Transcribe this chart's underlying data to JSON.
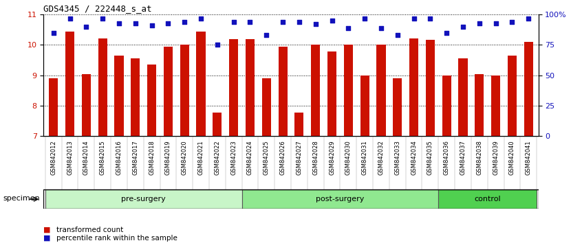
{
  "title": "GDS4345 / 222448_s_at",
  "samples": [
    "GSM842012",
    "GSM842013",
    "GSM842014",
    "GSM842015",
    "GSM842016",
    "GSM842017",
    "GSM842018",
    "GSM842019",
    "GSM842020",
    "GSM842021",
    "GSM842022",
    "GSM842023",
    "GSM842024",
    "GSM842025",
    "GSM842026",
    "GSM842027",
    "GSM842028",
    "GSM842029",
    "GSM842030",
    "GSM842031",
    "GSM842032",
    "GSM842033",
    "GSM842034",
    "GSM842035",
    "GSM842036",
    "GSM842037",
    "GSM842038",
    "GSM842039",
    "GSM842040",
    "GSM842041"
  ],
  "bar_values": [
    8.9,
    10.45,
    9.05,
    10.22,
    9.65,
    9.55,
    9.35,
    9.95,
    10.0,
    10.44,
    7.78,
    10.2,
    10.2,
    8.9,
    9.95,
    7.78,
    10.0,
    9.78,
    10.02,
    9.0,
    10.02,
    8.9,
    10.22,
    10.18,
    9.0,
    9.55,
    9.05,
    9.0,
    9.65,
    10.1
  ],
  "percentile_values": [
    85,
    97,
    90,
    97,
    93,
    93,
    91,
    93,
    94,
    97,
    75,
    94,
    94,
    83,
    94,
    94,
    92,
    95,
    89,
    97,
    89,
    83,
    97,
    97,
    85,
    90,
    93,
    93,
    94,
    97
  ],
  "groups": {
    "pre-surgery": [
      0,
      12
    ],
    "post-surgery": [
      12,
      24
    ],
    "control": [
      24,
      30
    ]
  },
  "group_colors": {
    "pre-surgery": "#c8f5c8",
    "post-surgery": "#90e890",
    "control": "#50d050"
  },
  "bar_color": "#cc1100",
  "percentile_color": "#1111bb",
  "bar_bottom": 7.0,
  "ylim": [
    7.0,
    11.0
  ],
  "yticks_left": [
    7,
    8,
    9,
    10,
    11
  ],
  "yticks_right_vals": [
    0,
    25,
    50,
    75,
    100
  ],
  "yticks_right_labels": [
    "0",
    "25",
    "50",
    "75",
    "100%"
  ],
  "legend_items": [
    "transformed count",
    "percentile rank within the sample"
  ],
  "legend_colors": [
    "#cc1100",
    "#1111bb"
  ],
  "specimen_label": "specimen",
  "tick_bg_color": "#cccccc",
  "group_border_color": "#555555"
}
